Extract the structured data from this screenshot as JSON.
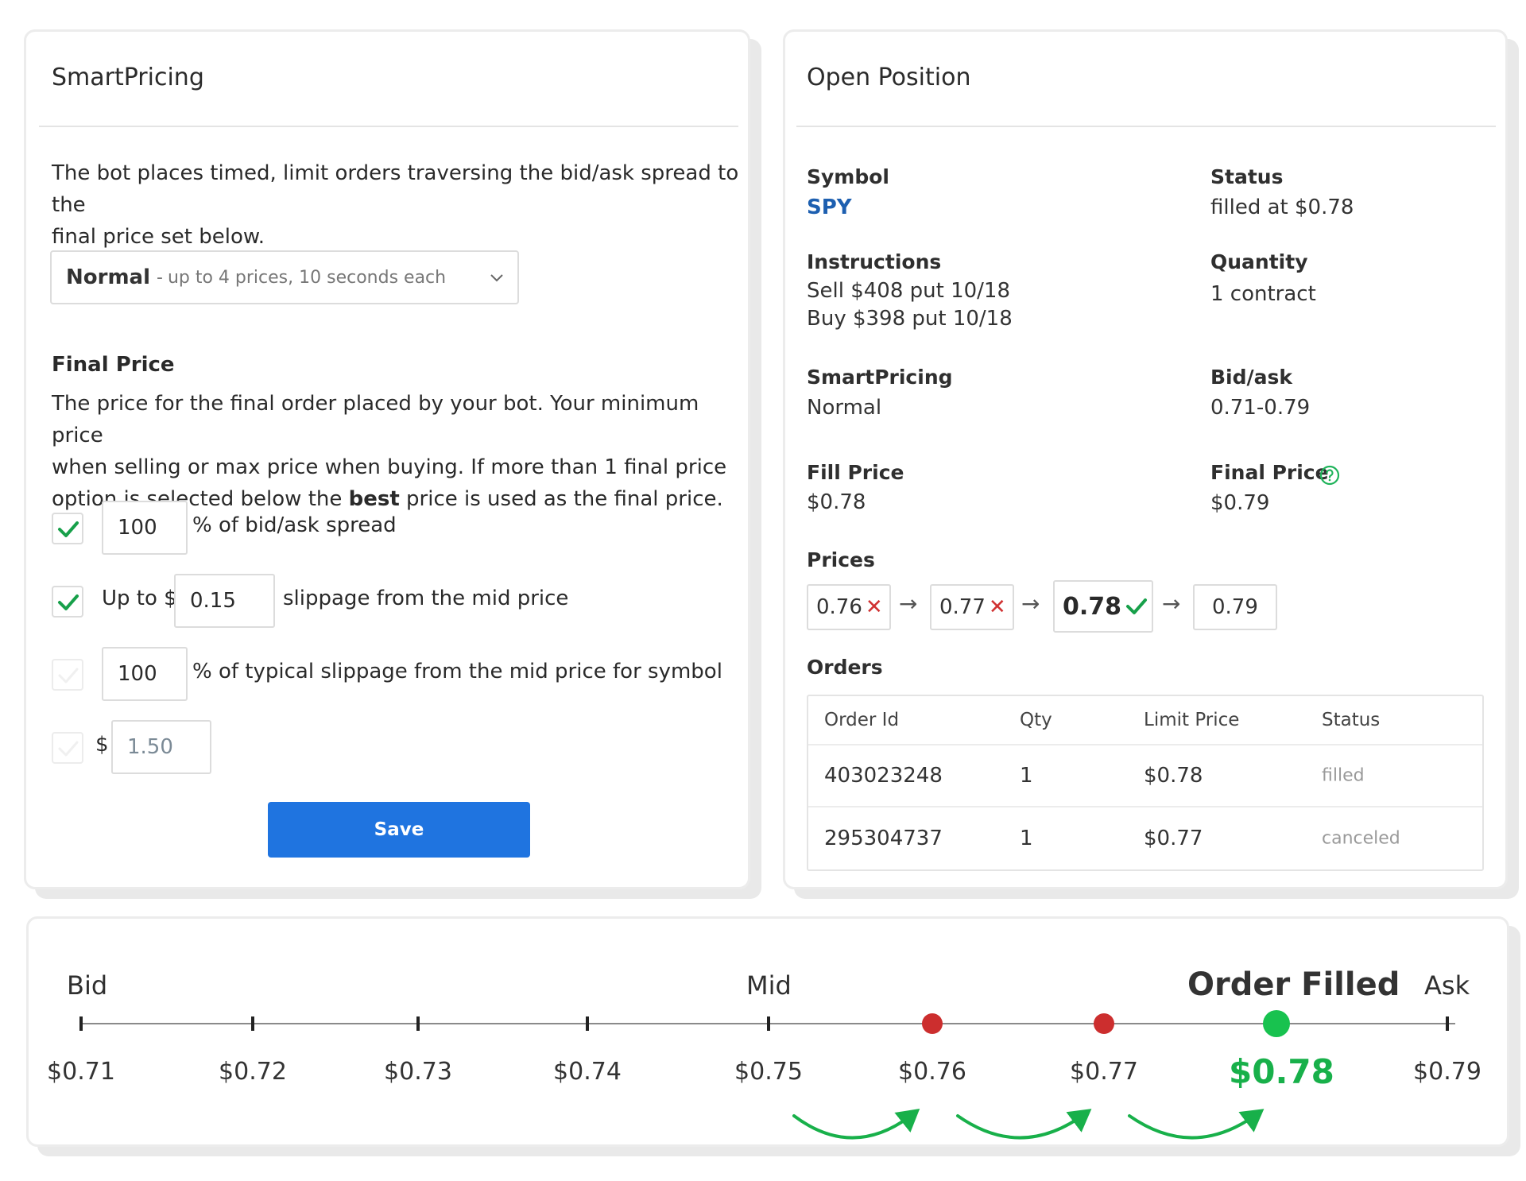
{
  "smartpricing": {
    "title": "SmartPricing",
    "description_line1": "The bot places timed, limit orders traversing the bid/ask spread to the",
    "description_line2": "final price set below.",
    "mode_select": {
      "selected": "Normal",
      "separator": "-",
      "detail": "up to 4 prices, 10 seconds each"
    },
    "final_price": {
      "label": "Final Price",
      "help_line1": "The price for the final order placed by your bot. Your minimum price",
      "help_line2": "when selling or max price when buying. If more than 1 final price",
      "help_line3_pre": "option is selected below the ",
      "help_line3_bold": "best",
      "help_line3_post": " price is used as the final price."
    },
    "options": [
      {
        "checked": true,
        "value": "100",
        "suffix": "% of bid/ask spread"
      },
      {
        "checked": true,
        "prefix": "Up to $",
        "value": "0.15",
        "suffix": "slippage from the mid price"
      },
      {
        "checked": false,
        "value": "100",
        "suffix": "% of typical slippage from the mid price for symbol"
      },
      {
        "checked": false,
        "prefix": "$",
        "value": "1.50"
      }
    ],
    "save_label": "Save"
  },
  "position": {
    "title": "Open Position",
    "symbol_label": "Symbol",
    "symbol_value": "SPY",
    "status_label": "Status",
    "status_value": "filled at $0.78",
    "instructions_label": "Instructions",
    "instructions_line1": "Sell $408 put 10/18",
    "instructions_line2": "Buy $398 put 10/18",
    "quantity_label": "Quantity",
    "quantity_value": "1 contract",
    "smartpricing_label": "SmartPricing",
    "smartpricing_value": "Normal",
    "bidask_label": "Bid/ask",
    "bidask_value": "0.71-0.79",
    "fillprice_label": "Fill Price",
    "fillprice_value": "$0.78",
    "finalprice_label": "Final Price",
    "finalprice_value": "$0.79",
    "prices_label": "Prices",
    "prices": [
      {
        "value": "0.76",
        "state": "rejected"
      },
      {
        "value": "0.77",
        "state": "rejected"
      },
      {
        "value": "0.78",
        "state": "filled"
      },
      {
        "value": "0.79",
        "state": "pending"
      }
    ],
    "price_arrow": "→",
    "orders_label": "Orders",
    "orders_columns": [
      "Order Id",
      "Qty",
      "Limit Price",
      "Status"
    ],
    "orders": [
      {
        "id": "403023248",
        "qty": "1",
        "limit": "$0.78",
        "status": "filled"
      },
      {
        "id": "295304737",
        "qty": "1",
        "limit": "$0.77",
        "status": "canceled"
      }
    ]
  },
  "timeline": {
    "bid_label": "Bid",
    "mid_label": "Mid",
    "filled_label": "Order Filled",
    "ask_label": "Ask",
    "ticks": [
      "$0.71",
      "$0.72",
      "$0.73",
      "$0.74",
      "$0.75",
      "$0.76",
      "$0.77",
      "$0.78",
      "$0.79"
    ],
    "attempts": [
      {
        "price": "$0.76",
        "result": "rejected"
      },
      {
        "price": "$0.77",
        "result": "rejected"
      },
      {
        "price": "$0.78",
        "result": "filled"
      }
    ],
    "colors": {
      "rejected": "#cc2e2e",
      "filled": "#18c24f",
      "arrow": "#18b04a"
    }
  },
  "colors": {
    "accent": "#1f74e0",
    "check": "#17a04a",
    "link": "#1d5fb0"
  }
}
